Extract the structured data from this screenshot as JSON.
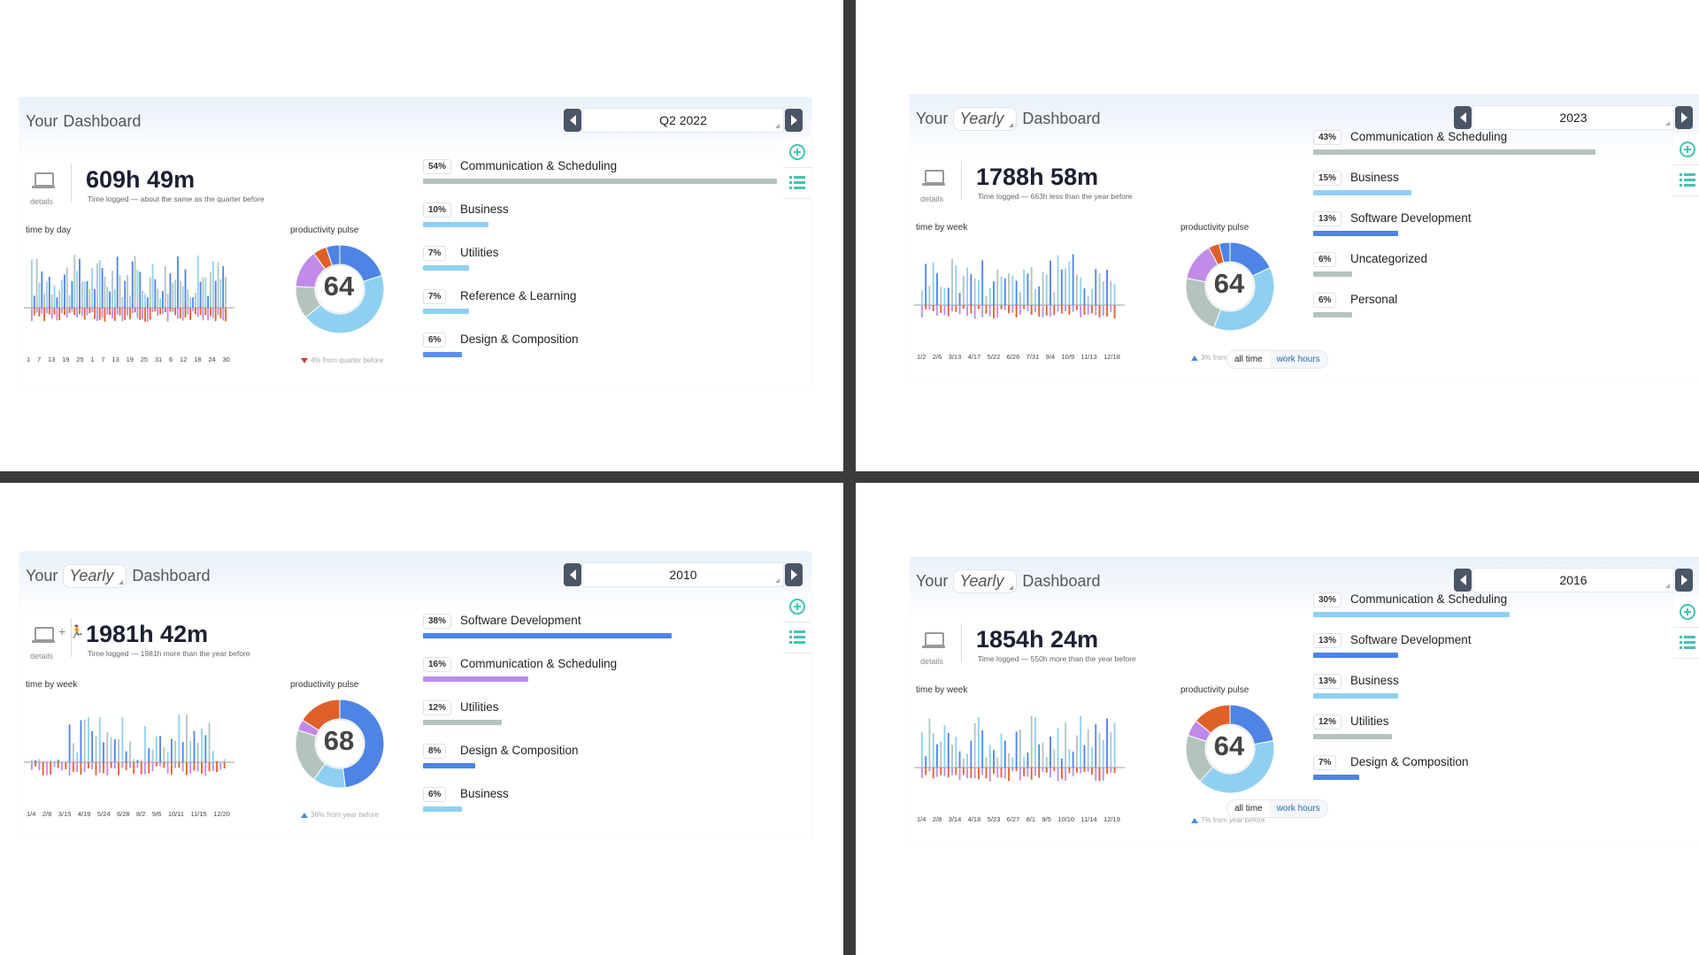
{
  "dashboards": [
    {
      "header": {
        "word_your": "Your",
        "mode": "",
        "word_dashboard": "Dashboard"
      },
      "period": "Q2 2022",
      "details_label": "details",
      "total_time": "609h 49m",
      "time_note": "Time logged — about the same as the quarter before",
      "histogram_label": "time by day",
      "tick_labels": [
        "1",
        "7",
        "13",
        "19",
        "25",
        "1",
        "7",
        "13",
        "19",
        "25",
        "31",
        "6",
        "12",
        "18",
        "24",
        "30"
      ],
      "pulse_label": "productivity pulse",
      "pulse_score": "64",
      "pulse_note": "4% from quarter before",
      "pulse_direction": "down",
      "categories": [
        {
          "pct": "54%",
          "name": "Communication & Scheduling",
          "fraction": 0.54,
          "color": "#b3c4bd"
        },
        {
          "pct": "10%",
          "name": "Business",
          "fraction": 0.1,
          "color": "#8fd0f2"
        },
        {
          "pct": "7%",
          "name": "Utilities",
          "fraction": 0.07,
          "color": "#8fd0f2"
        },
        {
          "pct": "7%",
          "name": "Reference & Learning",
          "fraction": 0.07,
          "color": "#8fd0f2"
        },
        {
          "pct": "6%",
          "name": "Design & Composition",
          "fraction": 0.06,
          "color": "#5b8ff0"
        }
      ],
      "toggle": null
    },
    {
      "header": {
        "word_your": "Your",
        "mode": "Yearly",
        "word_dashboard": "Dashboard"
      },
      "period": "2023",
      "details_label": "details",
      "total_time": "1788h 58m",
      "time_note": "Time logged — 663h less than the year before",
      "histogram_label": "time by week",
      "tick_labels": [
        "1/2",
        "2/6",
        "3/13",
        "4/17",
        "5/22",
        "6/26",
        "7/31",
        "9/4",
        "10/9",
        "11/13",
        "12/18"
      ],
      "pulse_label": "productivity pulse",
      "pulse_score": "64",
      "pulse_note": "3% from year before",
      "pulse_direction": "up",
      "categories": [
        {
          "pct": "43%",
          "name": "Communication & Scheduling",
          "fraction": 0.43,
          "color": "#b3c4bd"
        },
        {
          "pct": "15%",
          "name": "Business",
          "fraction": 0.15,
          "color": "#8fd0f2"
        },
        {
          "pct": "13%",
          "name": "Software Development",
          "fraction": 0.13,
          "color": "#4d84e6"
        },
        {
          "pct": "6%",
          "name": "Uncategorized",
          "fraction": 0.06,
          "color": "#b3c4bd"
        },
        {
          "pct": "6%",
          "name": "Personal",
          "fraction": 0.06,
          "color": "#b3c4bd"
        }
      ],
      "toggle": {
        "on": "all time",
        "off": "work hours"
      }
    },
    {
      "header": {
        "word_your": "Your",
        "mode": "Yearly",
        "word_dashboard": "Dashboard"
      },
      "period": "2010",
      "details_label": "details",
      "total_time": "1981h 42m",
      "time_note": "Time logged — 1981h more than the year before",
      "histogram_label": "time by week",
      "tick_labels": [
        "1/4",
        "2/8",
        "3/15",
        "4/19",
        "5/24",
        "6/28",
        "8/2",
        "9/6",
        "10/11",
        "11/15",
        "12/20"
      ],
      "pulse_label": "productivity pulse",
      "pulse_score": "68",
      "pulse_note": "36% from year before",
      "pulse_direction": "up",
      "categories": [
        {
          "pct": "38%",
          "name": "Software Development",
          "fraction": 0.38,
          "color": "#4d84e6"
        },
        {
          "pct": "16%",
          "name": "Communication & Scheduling",
          "fraction": 0.16,
          "color": "#c08be8"
        },
        {
          "pct": "12%",
          "name": "Utilities",
          "fraction": 0.12,
          "color": "#b3c4bd"
        },
        {
          "pct": "8%",
          "name": "Design & Composition",
          "fraction": 0.08,
          "color": "#4d84e6"
        },
        {
          "pct": "6%",
          "name": "Business",
          "fraction": 0.06,
          "color": "#8fd0f2"
        }
      ],
      "toggle": null
    },
    {
      "header": {
        "word_your": "Your",
        "mode": "Yearly",
        "word_dashboard": "Dashboard"
      },
      "period": "2016",
      "details_label": "details",
      "total_time": "1854h 24m",
      "time_note": "Time logged — 550h more than the year before",
      "histogram_label": "time by week",
      "tick_labels": [
        "1/4",
        "2/8",
        "3/14",
        "4/18",
        "5/23",
        "6/27",
        "8/1",
        "9/5",
        "10/10",
        "11/14",
        "12/19"
      ],
      "pulse_label": "productivity pulse",
      "pulse_score": "64",
      "pulse_note": "7% from year before",
      "pulse_direction": "up",
      "categories": [
        {
          "pct": "30%",
          "name": "Communication & Scheduling",
          "fraction": 0.3,
          "color": "#8fd0f2"
        },
        {
          "pct": "13%",
          "name": "Software Development",
          "fraction": 0.13,
          "color": "#4d84e6"
        },
        {
          "pct": "13%",
          "name": "Business",
          "fraction": 0.13,
          "color": "#8fd0f2"
        },
        {
          "pct": "12%",
          "name": "Utilities",
          "fraction": 0.12,
          "color": "#b3c4bd"
        },
        {
          "pct": "7%",
          "name": "Design & Composition",
          "fraction": 0.07,
          "color": "#4d84e6"
        }
      ],
      "toggle": {
        "on": "all time",
        "off": "work hours"
      }
    }
  ],
  "icons": {
    "prev": "triangle-left-icon",
    "next": "triangle-right-icon",
    "add": "plus-circle-icon",
    "list": "list-icon",
    "device": "laptop-icon",
    "runner": "runner-icon"
  },
  "colors": {
    "accent": "#46c1b2",
    "nav": "#4a5566",
    "bar_blue": "#4d84e6",
    "bar_light": "#8fd0f2",
    "bar_purple": "#c08be8",
    "bar_orange": "#e0602a"
  },
  "pulse_segments": [
    [
      {
        "c": "#4d84e6",
        "f": 0.2
      },
      {
        "c": "#8fd0f2",
        "f": 0.44
      },
      {
        "c": "#b3c4bd",
        "f": 0.12
      },
      {
        "c": "#c08be8",
        "f": 0.14
      },
      {
        "c": "#e0602a",
        "f": 0.05
      },
      {
        "c": "#4d84e6",
        "f": 0.05
      }
    ],
    [
      {
        "c": "#4d84e6",
        "f": 0.18
      },
      {
        "c": "#8fd0f2",
        "f": 0.38
      },
      {
        "c": "#b3c4bd",
        "f": 0.22
      },
      {
        "c": "#c08be8",
        "f": 0.14
      },
      {
        "c": "#e0602a",
        "f": 0.04
      },
      {
        "c": "#4d84e6",
        "f": 0.04
      }
    ],
    [
      {
        "c": "#4d84e6",
        "f": 0.48
      },
      {
        "c": "#8fd0f2",
        "f": 0.12
      },
      {
        "c": "#b3c4bd",
        "f": 0.2
      },
      {
        "c": "#c08be8",
        "f": 0.04
      },
      {
        "c": "#e0602a",
        "f": 0.16
      }
    ],
    [
      {
        "c": "#4d84e6",
        "f": 0.22
      },
      {
        "c": "#8fd0f2",
        "f": 0.4
      },
      {
        "c": "#b3c4bd",
        "f": 0.18
      },
      {
        "c": "#c08be8",
        "f": 0.06
      },
      {
        "c": "#e0602a",
        "f": 0.14
      }
    ]
  ]
}
